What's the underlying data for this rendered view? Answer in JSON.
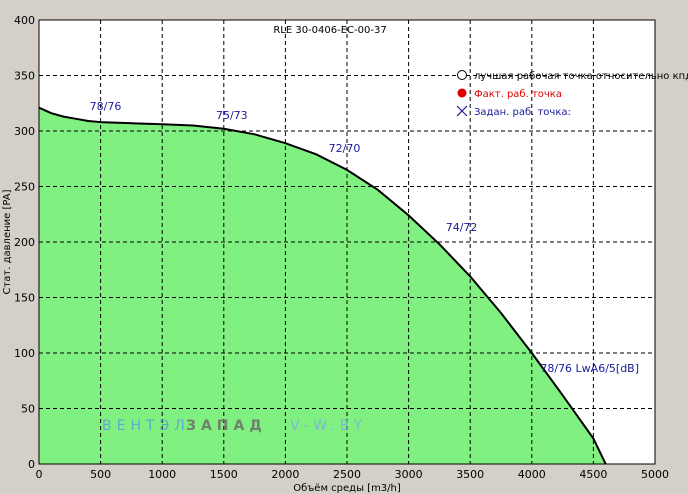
{
  "chart_data": {
    "type": "area",
    "title": "RLE 30-0406-EC-00-37",
    "xlabel": "Объём среды [m3/h]",
    "ylabel": "Стат. давление [PA]",
    "xlim": [
      0,
      5000
    ],
    "ylim": [
      0,
      400
    ],
    "xticks": [
      0,
      500,
      1000,
      1500,
      2000,
      2500,
      3000,
      3500,
      4000,
      4500,
      5000
    ],
    "yticks": [
      0,
      50,
      100,
      150,
      200,
      250,
      300,
      350,
      400
    ],
    "grid": true,
    "fill_color": "#80f080",
    "line_color": "#000000",
    "series": [
      {
        "x": [
          0,
          100,
          200,
          300,
          400,
          500,
          750,
          1000,
          1250,
          1500,
          1750,
          2000,
          2250,
          2500,
          2750,
          3000,
          3250,
          3500,
          3750,
          4000,
          4250,
          4500,
          4600
        ],
        "y": [
          321,
          316,
          313,
          311,
          309,
          308,
          307,
          306,
          305,
          302,
          297,
          289,
          279,
          265,
          247,
          224,
          198,
          169,
          136,
          100,
          62,
          23,
          0
        ]
      }
    ],
    "annotations": [
      {
        "text": "78/76",
        "x": 540,
        "y": 319
      },
      {
        "text": "75/73",
        "x": 1565,
        "y": 311
      },
      {
        "text": "72/70",
        "x": 2480,
        "y": 281
      },
      {
        "text": "74/72",
        "x": 3430,
        "y": 210
      },
      {
        "text": "78/76 LwA6/5[dB]",
        "x": 4470,
        "y": 83
      }
    ],
    "legend": {
      "position": "top-right",
      "items": [
        {
          "label": "лучшая рабочая точка относительно кпд",
          "marker": "open-circle",
          "color": "#000000"
        },
        {
          "label": "Факт. раб. точка",
          "marker": "filled-circle",
          "color": "#e00000"
        },
        {
          "label": "Задан. раб. точка:",
          "marker": "cross",
          "color": "#1a1a9a"
        }
      ]
    },
    "watermark": {
      "part1": "ВЕНТЭЛ",
      "part2": "ЗАПАД",
      "part3": "V-W.BY",
      "colors": [
        "#5aa0d8",
        "#808080",
        "#7ab0e0"
      ]
    }
  }
}
